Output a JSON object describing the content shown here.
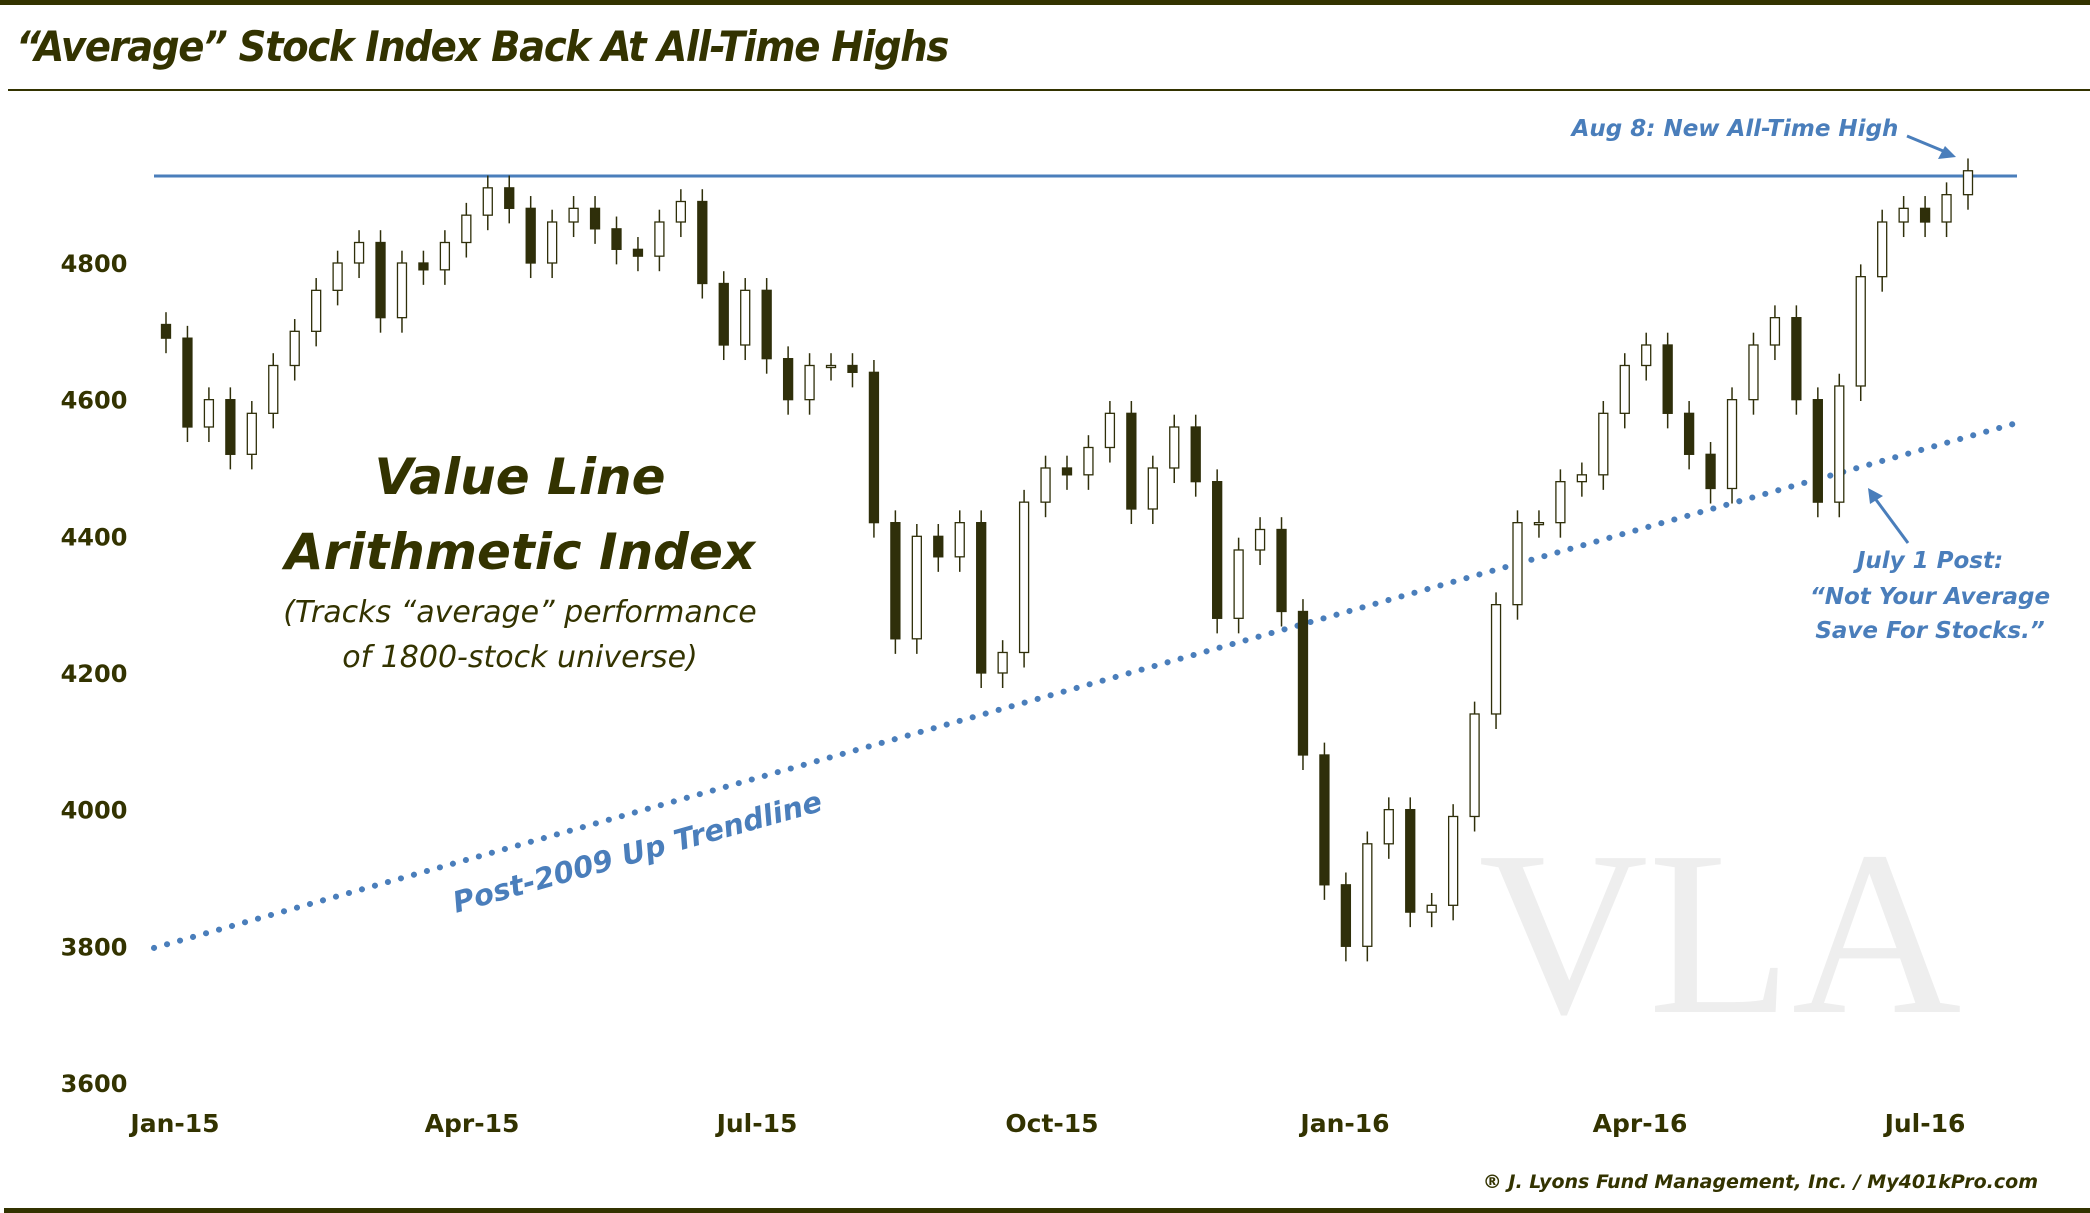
{
  "title": "“Average” Stock Index Back At All-Time Highs",
  "copyright": "® J. Lyons Fund Management, Inc. / My401kPro.com",
  "colors": {
    "frame": "#333300",
    "annotation": "#4a7ebb",
    "candle_down": "#2f2f0a",
    "candle_up": "#ffffff",
    "watermark": "#eeeeee"
  },
  "chart_data": {
    "type": "candlestick",
    "title": "“Average” Stock Index Back At All-Time Highs",
    "xlabel": "",
    "ylabel": "",
    "ylim": [
      3600,
      5000
    ],
    "yticks": [
      3600,
      3800,
      4000,
      4200,
      4400,
      4600,
      4800
    ],
    "xticks": [
      "Jan-15",
      "Apr-15",
      "Jul-15",
      "Oct-15",
      "Jan-16",
      "Apr-16",
      "Jul-16"
    ],
    "grid": false,
    "watermark": "VLA",
    "series": [
      {
        "dates": [
          "2015-01-02",
          "2015-01-09",
          "2015-01-16",
          "2015-01-23",
          "2015-01-30",
          "2015-02-06",
          "2015-02-13",
          "2015-02-20",
          "2015-02-27",
          "2015-03-06",
          "2015-03-13",
          "2015-03-20",
          "2015-03-27",
          "2015-04-03",
          "2015-04-10",
          "2015-04-17",
          "2015-04-24",
          "2015-05-01",
          "2015-05-08",
          "2015-05-15",
          "2015-05-22",
          "2015-05-29",
          "2015-06-05",
          "2015-06-12",
          "2015-06-19",
          "2015-06-26",
          "2015-07-03",
          "2015-07-10",
          "2015-07-17",
          "2015-07-24",
          "2015-07-31",
          "2015-08-07",
          "2015-08-14",
          "2015-08-21",
          "2015-08-28",
          "2015-09-04",
          "2015-09-11",
          "2015-09-18",
          "2015-09-25",
          "2015-10-02",
          "2015-10-09",
          "2015-10-16",
          "2015-10-23",
          "2015-10-30",
          "2015-11-06",
          "2015-11-13",
          "2015-11-20",
          "2015-11-27",
          "2015-12-04",
          "2015-12-11",
          "2015-12-18",
          "2015-12-25",
          "2016-01-01",
          "2016-01-08",
          "2016-01-15",
          "2016-01-22",
          "2016-01-29",
          "2016-02-05",
          "2016-02-12",
          "2016-02-19",
          "2016-02-26",
          "2016-03-04",
          "2016-03-11",
          "2016-03-18",
          "2016-03-25",
          "2016-04-01",
          "2016-04-08",
          "2016-04-15",
          "2016-04-22",
          "2016-04-29",
          "2016-05-06",
          "2016-05-13",
          "2016-05-20",
          "2016-05-27",
          "2016-06-03",
          "2016-06-10",
          "2016-06-17",
          "2016-06-24",
          "2016-07-01",
          "2016-07-08",
          "2016-07-15",
          "2016-07-22",
          "2016-07-29",
          "2016-08-05",
          "2016-08-08"
        ],
        "close": [
          4690,
          4560,
          4600,
          4520,
          4580,
          4650,
          4700,
          4760,
          4800,
          4830,
          4720,
          4800,
          4790,
          4830,
          4870,
          4910,
          4880,
          4800,
          4860,
          4880,
          4850,
          4820,
          4810,
          4860,
          4890,
          4770,
          4680,
          4760,
          4660,
          4600,
          4650,
          4650,
          4640,
          4420,
          4250,
          4400,
          4370,
          4420,
          4200,
          4230,
          4450,
          4500,
          4490,
          4530,
          4580,
          4440,
          4500,
          4560,
          4480,
          4280,
          4380,
          4410,
          4290,
          4080,
          3890,
          3800,
          3950,
          4000,
          3850,
          3860,
          3990,
          4140,
          4300,
          4420,
          4420,
          4480,
          4490,
          4580,
          4650,
          4680,
          4580,
          4520,
          4470,
          4600,
          4680,
          4720,
          4600,
          4450,
          4620,
          4780,
          4860,
          4880,
          4860,
          4900,
          4935
        ]
      }
    ],
    "resistance_level": 4927,
    "trendline": {
      "label": "Post-2009 Up Trendline",
      "start_value": 3802,
      "end_value": 4563
    },
    "annotations": {
      "index_name": [
        "Value Line",
        "Arithmetic Index"
      ],
      "index_desc": [
        "(Tracks “average” performance",
        "of 1800-stock universe)"
      ],
      "high_note": "Aug 8: New All-Time High",
      "post_note": [
        "July 1 Post:",
        "“Not Your Average",
        "Save For Stocks.”"
      ]
    }
  }
}
